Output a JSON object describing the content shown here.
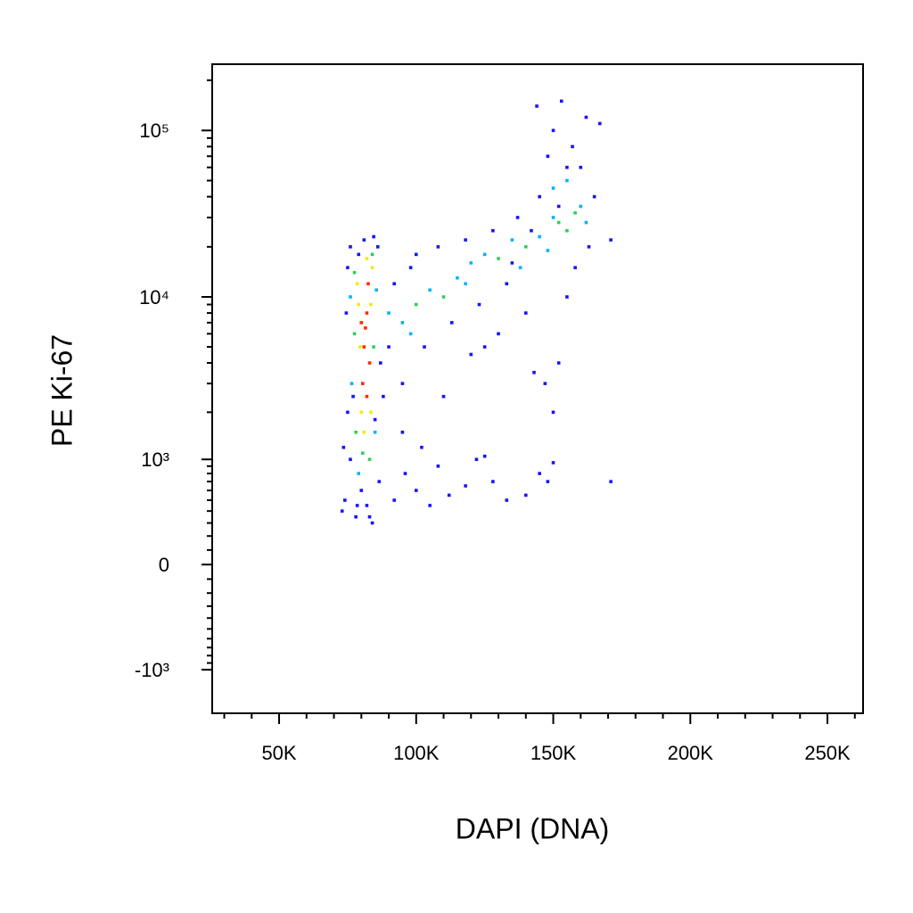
{
  "chart_data": {
    "type": "scatter",
    "x_label": "DAPI (DNA)",
    "y_label": "PE Ki-67",
    "xlim": [
      25600,
      263000
    ],
    "xticks": [
      {
        "value": 50000,
        "label": "50K"
      },
      {
        "value": 100000,
        "label": "100K"
      },
      {
        "value": 150000,
        "label": "150K"
      },
      {
        "value": 200000,
        "label": "200K"
      },
      {
        "value": 250000,
        "label": "250K"
      }
    ],
    "xminorticks": [
      30000,
      40000,
      60000,
      70000,
      80000,
      90000,
      110000,
      120000,
      130000,
      140000,
      160000,
      170000,
      180000,
      190000,
      210000,
      220000,
      230000,
      240000,
      260000
    ],
    "yscale": "biexponential",
    "ylim": [
      -1900,
      250000
    ],
    "yticks": [
      {
        "value": -1000,
        "label": "-10³"
      },
      {
        "value": 0,
        "label": "0"
      },
      {
        "value": 1000,
        "label": "10³"
      },
      {
        "value": 10000,
        "label": "10⁴"
      },
      {
        "value": 100000,
        "label": "10⁵"
      }
    ],
    "yminorticks": [
      -900,
      -800,
      -700,
      -600,
      -500,
      -400,
      -300,
      -200,
      -100,
      100,
      200,
      300,
      400,
      500,
      600,
      700,
      800,
      900,
      2000,
      3000,
      4000,
      5000,
      6000,
      7000,
      8000,
      9000,
      20000,
      30000,
      40000,
      50000,
      60000,
      70000,
      80000,
      90000,
      200000
    ],
    "series": [
      {
        "color": "#1414ff",
        "x": [
          74000,
          73000,
          75000,
          74500,
          75000,
          76000,
          86000,
          87000,
          88000,
          86500,
          78000,
          84000,
          80000,
          82000,
          76000,
          73500,
          92000,
          95000,
          98000,
          100000,
          103000,
          108000,
          110000,
          113000,
          118000,
          120000,
          123000,
          128000,
          130000,
          133000,
          137000,
          140000,
          143000,
          145000,
          148000,
          150000,
          153000,
          144000,
          157000,
          160000,
          162000,
          165000,
          167000,
          158000,
          163000,
          171000,
          155000,
          150000,
          147000,
          152000,
          92000,
          96000,
          100000,
          105000,
          108000,
          112000,
          118000,
          122000,
          125000,
          128000,
          133000,
          140000,
          145000,
          150000,
          148000,
          171000,
          95000,
          102000,
          90000,
          85000,
          77000,
          79000,
          81000,
          84500,
          78500,
          83000,
          125000,
          135000,
          142000,
          155000,
          152000
        ],
        "values": [
          500,
          400,
          2000,
          8000,
          15000,
          20000,
          20000,
          4000,
          2500,
          700,
          350,
          300,
          600,
          450,
          1000,
          1200,
          12000,
          3000,
          15000,
          18000,
          5000,
          20000,
          2500,
          7000,
          22000,
          4500,
          9000,
          25000,
          6000,
          12000,
          30000,
          8000,
          3500,
          40000,
          70000,
          100000,
          150000,
          140000,
          80000,
          60000,
          120000,
          40000,
          110000,
          15000,
          20000,
          22000,
          10000,
          2000,
          3000,
          4000,
          500,
          800,
          600,
          450,
          900,
          550,
          650,
          1000,
          1050,
          700,
          500,
          550,
          800,
          950,
          700,
          700,
          1500,
          1200,
          5000,
          1800,
          2500,
          18000,
          22000,
          23000,
          450,
          350,
          5000,
          16000,
          25000,
          60000,
          35000
        ]
      },
      {
        "color": "#00b4ff",
        "x": [
          76500,
          76000,
          85500,
          79000,
          85000,
          90000,
          95000,
          105000,
          115000,
          120000,
          125000,
          135000,
          145000,
          150000,
          160000,
          162000,
          148000,
          138000,
          118000,
          98000,
          155000,
          150000
        ],
        "values": [
          3000,
          10000,
          11000,
          800,
          1500,
          8000,
          7000,
          11000,
          13000,
          16000,
          18000,
          22000,
          23000,
          30000,
          35000,
          28000,
          19000,
          15000,
          12000,
          6000,
          50000,
          45000
        ]
      },
      {
        "color": "#2ed05a",
        "x": [
          77500,
          84500,
          78000,
          80500,
          84000,
          77500,
          83000,
          152000,
          158000,
          130000,
          110000,
          100000,
          140000,
          155000
        ],
        "values": [
          6000,
          5000,
          1500,
          1100,
          18000,
          14000,
          1000,
          28000,
          32000,
          17000,
          10000,
          9000,
          20000,
          25000
        ]
      },
      {
        "color": "#e8ef10",
        "x": [
          79000,
          83500,
          80000,
          84000,
          79500,
          83500,
          81000,
          78500,
          82000
        ],
        "values": [
          9000,
          9000,
          2000,
          15000,
          5000,
          2000,
          1500,
          12000,
          17000
        ]
      },
      {
        "color": "#ff2a00",
        "x": [
          81000,
          82000,
          80500,
          82500,
          81500,
          83000,
          80000,
          82000
        ],
        "values": [
          5000,
          8000,
          3000,
          12000,
          6500,
          4000,
          7000,
          2500
        ]
      }
    ]
  }
}
